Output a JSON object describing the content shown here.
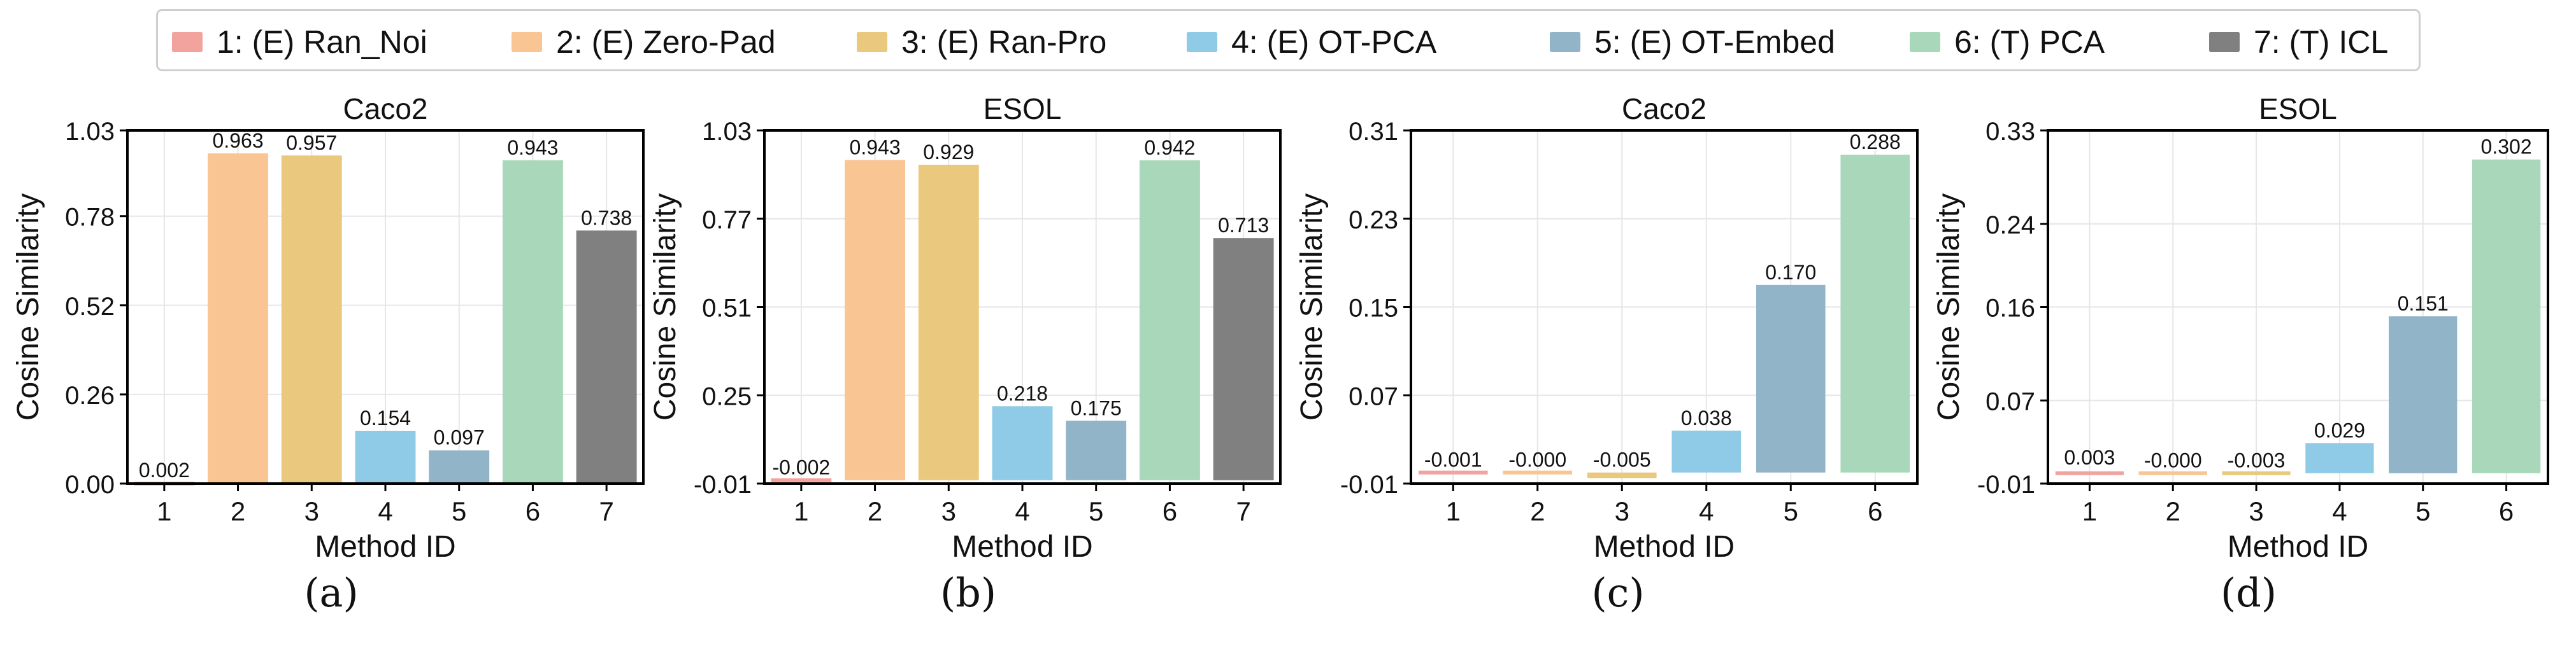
{
  "legend": [
    {
      "label": "1: (E) Ran_Noi",
      "color": "#f2a39d"
    },
    {
      "label": "2: (E) Zero-Pad",
      "color": "#f9c592"
    },
    {
      "label": "3: (E) Ran-Pro",
      "color": "#eac97e"
    },
    {
      "label": "4: (E) OT-PCA",
      "color": "#8fcbe6"
    },
    {
      "label": "5: (E) OT-Embed",
      "color": "#92b4c8"
    },
    {
      "label": "6: (T) PCA",
      "color": "#a8d8b9"
    },
    {
      "label": "7: (T) ICL",
      "color": "#808080"
    }
  ],
  "chart_data": [
    {
      "type": "bar",
      "panel": "(a)",
      "title": "Caco2",
      "xlabel": "Method ID",
      "ylabel": "Cosine Similarity",
      "categories": [
        "1",
        "2",
        "3",
        "4",
        "5",
        "6",
        "7"
      ],
      "values": [
        0.002,
        0.963,
        0.957,
        0.154,
        0.097,
        0.943,
        0.738
      ],
      "value_labels": [
        "0.002",
        "0.963",
        "0.957",
        "0.154",
        "0.097",
        "0.943",
        "0.738"
      ],
      "yticks": [
        "0.00",
        "0.26",
        "0.52",
        "0.78",
        "1.03"
      ],
      "ylim": [
        0.0,
        1.03
      ],
      "grid": true
    },
    {
      "type": "bar",
      "panel": "(b)",
      "title": "ESOL",
      "xlabel": "Method ID",
      "ylabel": "Cosine Similarity",
      "categories": [
        "1",
        "2",
        "3",
        "4",
        "5",
        "6",
        "7"
      ],
      "values": [
        -0.002,
        0.943,
        0.929,
        0.218,
        0.175,
        0.942,
        0.713
      ],
      "value_labels": [
        "-0.002",
        "0.943",
        "0.929",
        "0.218",
        "0.175",
        "0.942",
        "0.713"
      ],
      "yticks": [
        "-0.01",
        "0.25",
        "0.51",
        "0.77",
        "1.03"
      ],
      "ylim": [
        -0.01,
        1.03
      ],
      "grid": true
    },
    {
      "type": "bar",
      "panel": "(c)",
      "title": "Caco2",
      "xlabel": "Method ID",
      "ylabel": "Cosine Similarity",
      "categories": [
        "1",
        "2",
        "3",
        "4",
        "5",
        "6"
      ],
      "values": [
        -0.001,
        -0.0002,
        -0.005,
        0.038,
        0.17,
        0.288
      ],
      "value_labels": [
        "-0.001",
        "-0.000",
        "-0.005",
        "0.038",
        "0.170",
        "0.288"
      ],
      "yticks": [
        "-0.01",
        "0.07",
        "0.15",
        "0.23",
        "0.31"
      ],
      "ylim": [
        -0.01,
        0.31
      ],
      "grid": true
    },
    {
      "type": "bar",
      "panel": "(d)",
      "title": "ESOL",
      "xlabel": "Method ID",
      "ylabel": "Cosine Similarity",
      "categories": [
        "1",
        "2",
        "3",
        "4",
        "5",
        "6"
      ],
      "values": [
        0.003,
        -0.0002,
        -0.003,
        0.029,
        0.151,
        0.302
      ],
      "value_labels": [
        "0.003",
        "-0.000",
        "-0.003",
        "0.029",
        "0.151",
        "0.302"
      ],
      "yticks": [
        "-0.01",
        "0.07",
        "0.16",
        "0.24",
        "0.33"
      ],
      "ylim": [
        -0.01,
        0.33
      ],
      "grid": true
    }
  ]
}
